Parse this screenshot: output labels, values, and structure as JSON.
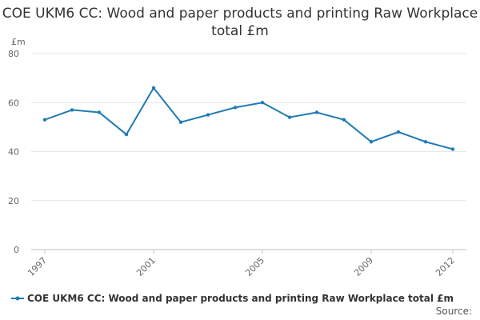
{
  "colors": {
    "series": "#1f7bb6",
    "grid": "#e6e6e6",
    "axis": "#c0c0c0"
  },
  "chart_data": {
    "type": "line",
    "title": "COE UKM6 CC: Wood and paper products and printing Raw Workplace total £m",
    "ylabel": "£m",
    "xlabel": "",
    "ylim": [
      0,
      80
    ],
    "yticks": [
      0,
      20,
      40,
      60,
      80
    ],
    "xlim": [
      1997,
      2012
    ],
    "xtick_labels": [
      "1997",
      "2001",
      "2005",
      "2009",
      "2012"
    ],
    "grid": true,
    "legend": "bottom",
    "series": [
      {
        "name": "COE UKM6 CC: Wood and paper products and printing Raw Workplace total £m",
        "x": [
          1997,
          1998,
          1999,
          2000,
          2001,
          2002,
          2003,
          2004,
          2005,
          2006,
          2007,
          2008,
          2009,
          2010,
          2011,
          2012
        ],
        "values": [
          53,
          57,
          56,
          47,
          66,
          52,
          55,
          58,
          60,
          54,
          56,
          53,
          44,
          48,
          44,
          41
        ]
      }
    ],
    "source_label": "Source:"
  }
}
